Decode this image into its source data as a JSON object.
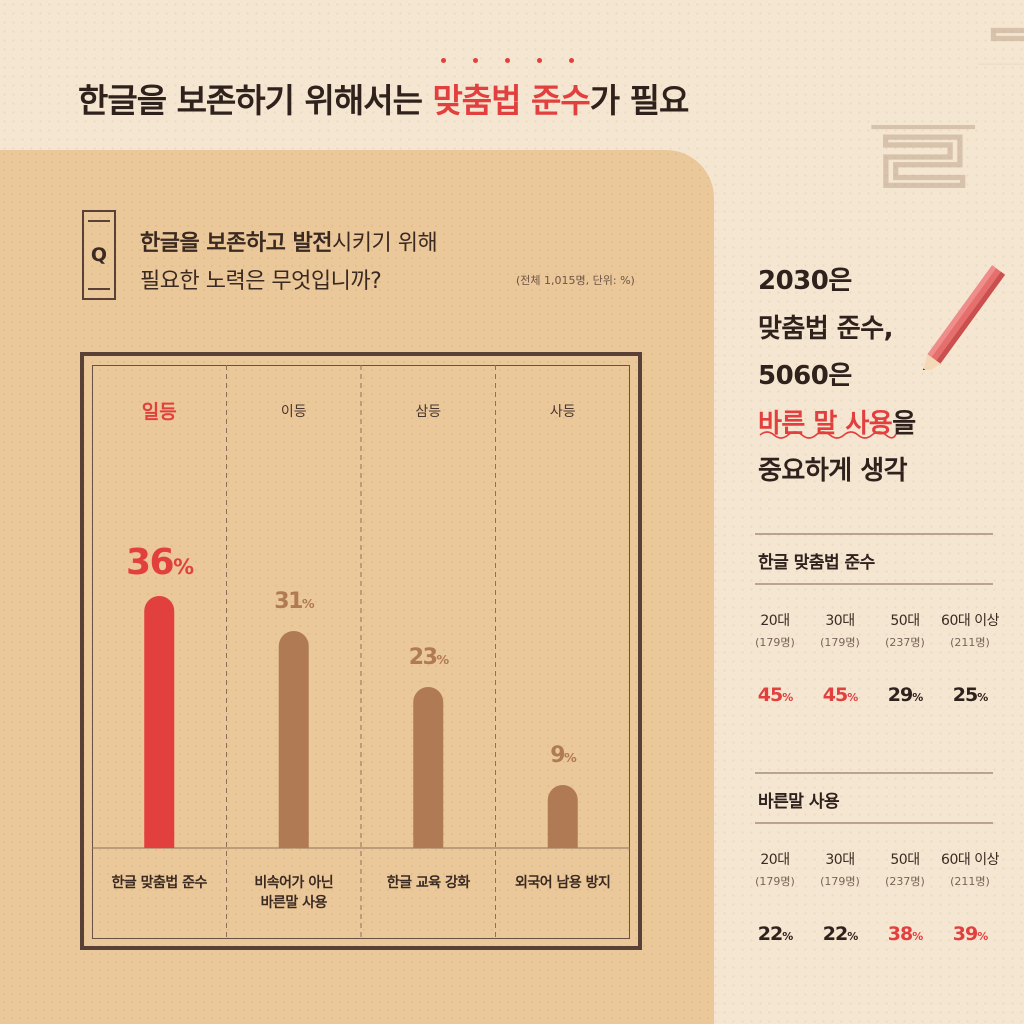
{
  "headline": {
    "part1": "한글을 보존하기 위해서는 ",
    "highlight": "맞춤법 준수",
    "part2": "가 필요"
  },
  "question": {
    "badge": "Q",
    "line1_bold": "한글을 보존하고 발전",
    "line1_rest": "시키기 위해",
    "line2": "필요한 노력은 무엇입니까?",
    "note": "(전체 1,015명, 단위: %)"
  },
  "colors": {
    "accent_red": "#e2403f",
    "bar_brown": "#b07a55",
    "frame_brown": "#5a4138",
    "panel_tan": "#ebc899",
    "background": "#f5e6d2"
  },
  "chart_data": {
    "type": "bar",
    "categories": [
      "한글 맞춤법 준수",
      "비속어가 아닌 바른말 사용",
      "한글 교육 강화",
      "외국어 남용 방지"
    ],
    "category_lines": [
      [
        "한글 맞춤법 준수"
      ],
      [
        "비속어가 아닌",
        "바른말 사용"
      ],
      [
        "한글 교육 강화"
      ],
      [
        "외국어 남용 방지"
      ]
    ],
    "ranks": [
      "일등",
      "이등",
      "삼등",
      "사등"
    ],
    "values": [
      36,
      31,
      23,
      9
    ],
    "value_labels": [
      "36",
      "31",
      "23",
      "9"
    ],
    "unit": "%",
    "ylim": [
      0,
      40
    ],
    "highlight_index": 0
  },
  "right": {
    "title_lines": [
      "2030은",
      "맞춤법 준수,",
      "5060은"
    ],
    "highlight": "바른 말 사용",
    "after_highlight": "을",
    "last_line": "중요하게 생각",
    "sections": [
      {
        "title": "한글 맞춤법 준수",
        "ages": [
          {
            "name": "20대",
            "count": "(179명)",
            "value": "45",
            "red": true
          },
          {
            "name": "30대",
            "count": "(179명)",
            "value": "45",
            "red": true
          },
          {
            "name": "50대",
            "count": "(237명)",
            "value": "29",
            "red": false
          },
          {
            "name": "60대 이상",
            "count": "(211명)",
            "value": "25",
            "red": false
          }
        ]
      },
      {
        "title": "바른말 사용",
        "ages": [
          {
            "name": "20대",
            "count": "(179명)",
            "value": "22",
            "red": false
          },
          {
            "name": "30대",
            "count": "(179명)",
            "value": "22",
            "red": false
          },
          {
            "name": "50대",
            "count": "(237명)",
            "value": "38",
            "red": true
          },
          {
            "name": "60대 이상",
            "count": "(211명)",
            "value": "39",
            "red": true
          }
        ]
      }
    ],
    "percent_sign": "%"
  },
  "decor": {
    "glyph": "글",
    "icons": [
      "pencil-icon",
      "wavy-underline"
    ]
  }
}
